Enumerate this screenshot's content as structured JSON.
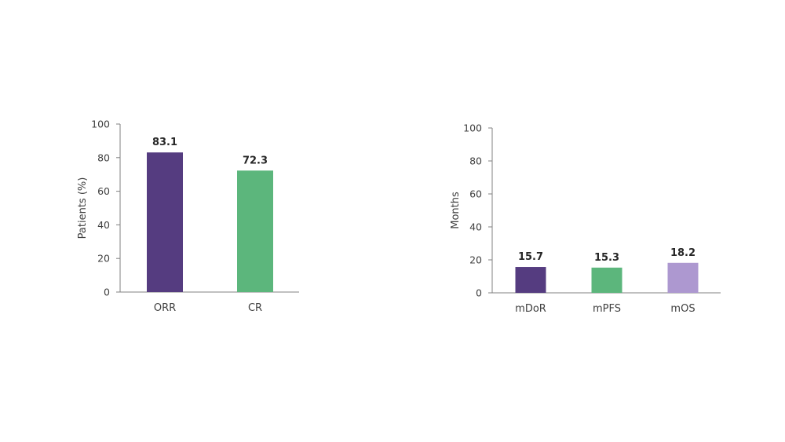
{
  "chart_data": [
    {
      "type": "bar",
      "title": "",
      "xlabel": "",
      "ylabel": "Patients (%)",
      "ylim": [
        0,
        100
      ],
      "yticks": [
        0,
        20,
        40,
        60,
        80,
        100
      ],
      "categories": [
        "ORR",
        "CR"
      ],
      "values": [
        83.1,
        72.3
      ],
      "value_labels": [
        "83.1",
        "72.3"
      ],
      "colors": [
        "#553c80",
        "#5cb67c"
      ],
      "grid": false,
      "legend": "none"
    },
    {
      "type": "bar",
      "title": "",
      "xlabel": "",
      "ylabel": "Months",
      "ylim": [
        0,
        100
      ],
      "yticks": [
        0,
        20,
        40,
        60,
        80,
        100
      ],
      "categories": [
        "mDoR",
        "mPFS",
        "mOS"
      ],
      "values": [
        15.7,
        15.3,
        18.2
      ],
      "value_labels": [
        "15.7",
        "15.3",
        "18.2"
      ],
      "colors": [
        "#553c80",
        "#5cb67c",
        "#ad98d0"
      ],
      "grid": false,
      "legend": "none"
    }
  ]
}
